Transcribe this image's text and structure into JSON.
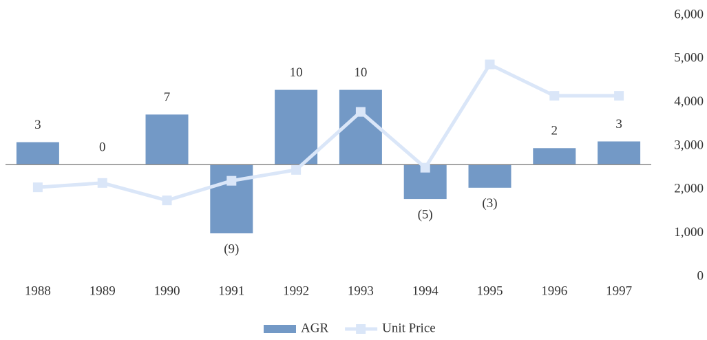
{
  "chart_data": {
    "type": "bar_line",
    "categories": [
      "1988",
      "1989",
      "1990",
      "1991",
      "1992",
      "1993",
      "1994",
      "1995",
      "1996",
      "1997"
    ],
    "series": [
      {
        "name": "AGR",
        "type": "bar",
        "axis": "y",
        "color": "#7399c6",
        "values": [
          3.0,
          0,
          6.7,
          -9.2,
          10.0,
          10.0,
          -4.6,
          -3.1,
          2.2,
          3.1
        ],
        "value_labels": [
          "3",
          "0",
          "7",
          "(9)",
          "10",
          "10",
          "(5)",
          "(3)",
          "2",
          "3"
        ]
      },
      {
        "name": "Unit Price",
        "type": "line",
        "axis": "y2",
        "color": "#dae6f8",
        "values": [
          2050,
          2150,
          1750,
          2200,
          2450,
          3780,
          2500,
          4870,
          4150,
          4150
        ]
      }
    ],
    "ylim": [
      -15,
      20
    ],
    "y2lim": [
      0,
      6000
    ],
    "y2ticks": [
      0,
      {
        "value": 1000,
        "label": "1,000"
      },
      {
        "value": 2000,
        "label": "2,000"
      },
      {
        "value": 3000,
        "label": "3,000"
      },
      {
        "value": 4000,
        "label": "4,000"
      },
      {
        "value": 5000,
        "label": "5,000"
      },
      {
        "value": 6000,
        "label": "6,000"
      }
    ],
    "legend": "bottom"
  }
}
